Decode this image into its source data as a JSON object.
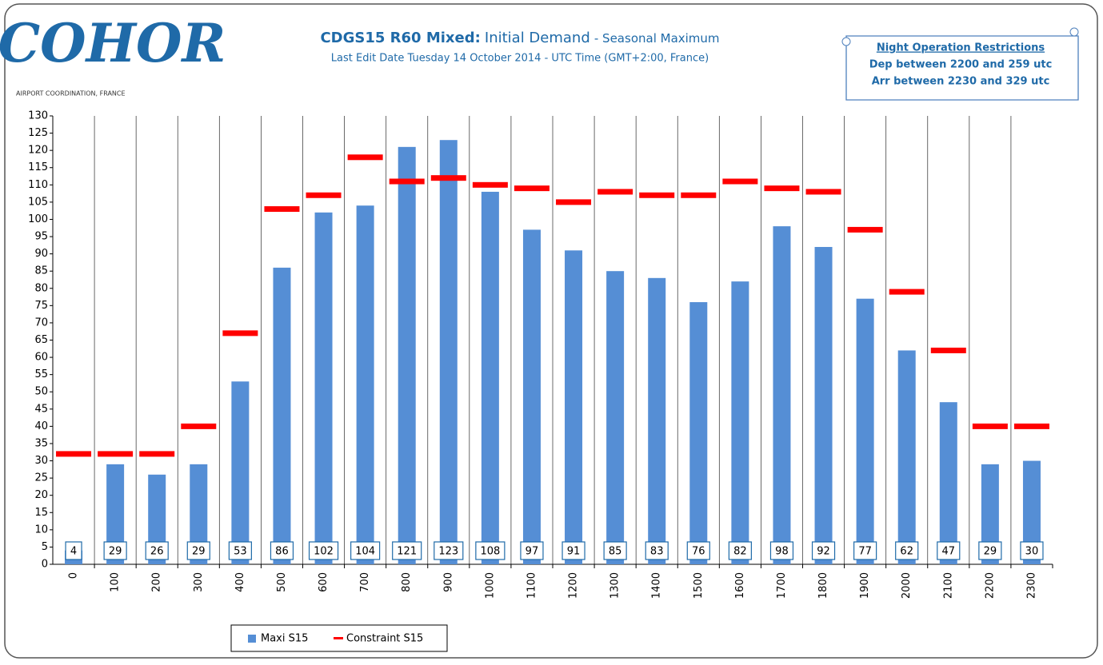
{
  "logo": {
    "name": "COHOR",
    "tagline": "AIRPORT COORDINATION, FRANCE"
  },
  "note": {
    "title": "Night Operation Restrictions",
    "lines": [
      "Dep between 2200 and  259 utc",
      "Arr between 2230 and  329 utc"
    ]
  },
  "chart_data": {
    "type": "bar",
    "title_parts": [
      "CDGS15 R60 Mixed:",
      "Initial Demand",
      "- Seasonal Maximum"
    ],
    "subtitle": "Last Edit Date Tuesday 14 October 2014 - UTC Time (GMT+2:00,  France)",
    "categories": [
      "0",
      "100",
      "200",
      "300",
      "400",
      "500",
      "600",
      "700",
      "800",
      "900",
      "1000",
      "1100",
      "1200",
      "1300",
      "1400",
      "1500",
      "1600",
      "1700",
      "1800",
      "1900",
      "2000",
      "2100",
      "2200",
      "2300"
    ],
    "series": [
      {
        "name": "Maxi S15",
        "color": "#558ed5",
        "values": [
          4,
          29,
          26,
          29,
          53,
          86,
          102,
          104,
          121,
          123,
          108,
          97,
          91,
          85,
          83,
          76,
          82,
          98,
          92,
          77,
          62,
          47,
          29,
          30
        ]
      },
      {
        "name": "Constraint S15",
        "color": "#ff0000",
        "values": [
          32,
          32,
          32,
          40,
          67,
          103,
          107,
          118,
          111,
          112,
          110,
          109,
          105,
          108,
          107,
          107,
          111,
          109,
          108,
          97,
          79,
          62,
          40,
          40
        ]
      }
    ],
    "ylim": [
      0,
      130
    ],
    "yticks": [
      0,
      5,
      10,
      15,
      20,
      25,
      30,
      35,
      40,
      45,
      50,
      55,
      60,
      65,
      70,
      75,
      80,
      85,
      90,
      95,
      100,
      105,
      110,
      115,
      120,
      125,
      130
    ],
    "grid": true
  }
}
